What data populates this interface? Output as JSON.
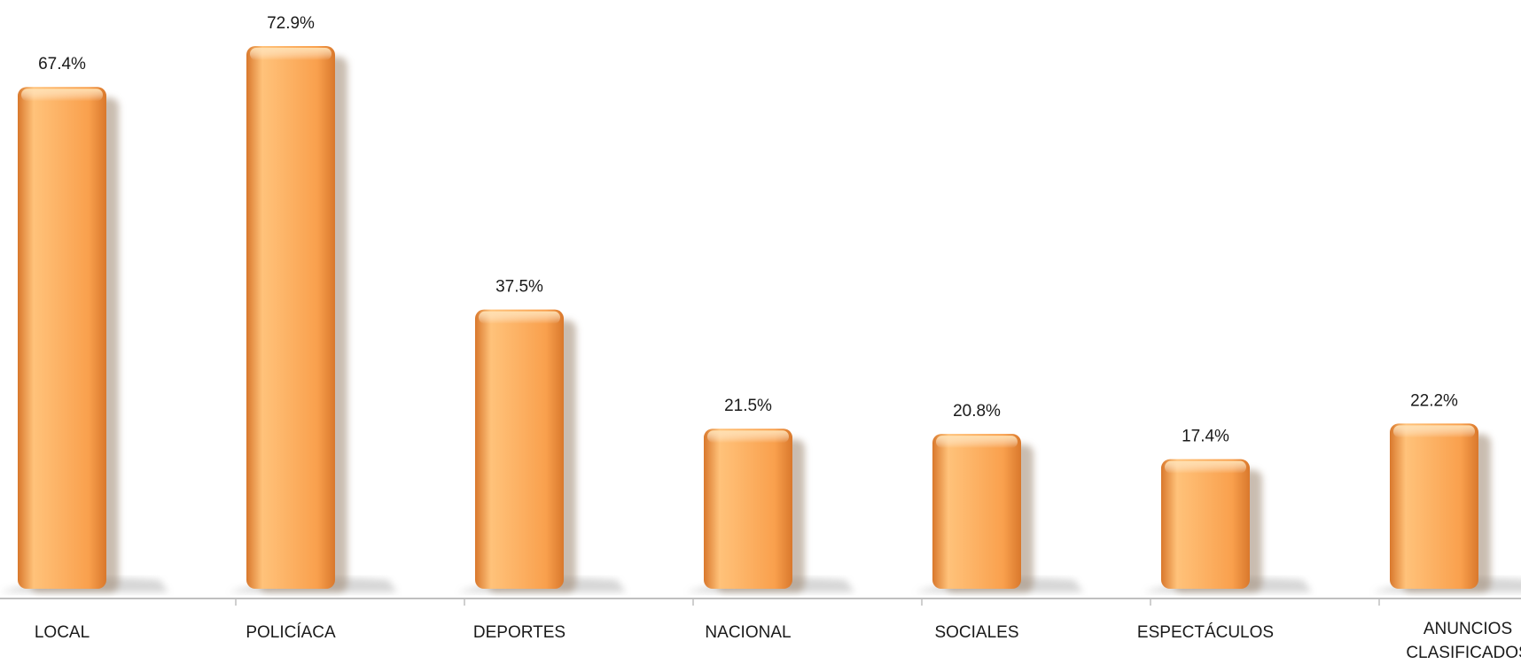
{
  "chart_data": {
    "type": "bar",
    "title": "",
    "xlabel": "",
    "ylabel": "",
    "ylim": [
      0,
      80
    ],
    "grid": false,
    "legend": "none",
    "categories": [
      [
        "LOCAL"
      ],
      [
        "POLICÍACA"
      ],
      [
        "DEPORTES"
      ],
      [
        "NACIONAL"
      ],
      [
        "SOCIALES"
      ],
      [
        "ESPECTÁCULOS"
      ],
      [
        "ANUNCIOS",
        "CLASIFICADOS"
      ]
    ],
    "values": [
      67.4,
      72.9,
      37.5,
      21.5,
      20.8,
      17.4,
      22.2
    ],
    "value_labels": [
      "67.4%",
      "72.9%",
      "37.5%",
      "21.5%",
      "20.8%",
      "17.4%",
      "22.2%"
    ],
    "colors": {
      "bar_light": "#ffc27a",
      "bar_main": "#f9a04d",
      "bar_dark": "#d9782c",
      "shadow": "#9d8670",
      "axis": "#bfbfbf"
    }
  }
}
